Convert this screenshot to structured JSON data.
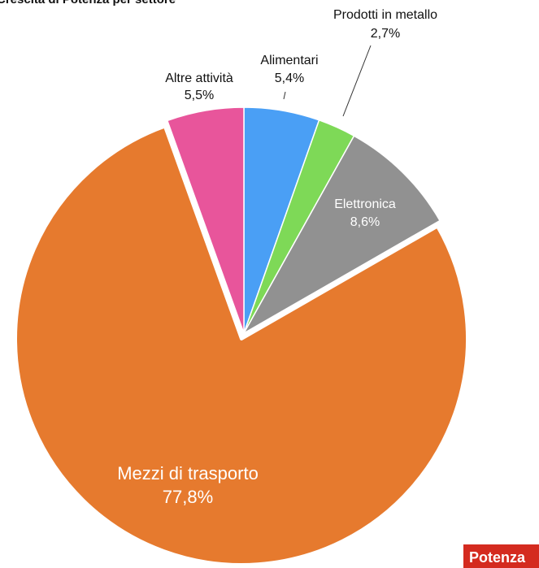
{
  "header": {
    "title": "Crescita di Potenza per settore"
  },
  "brand": {
    "label": "Potenza"
  },
  "chart_data": {
    "type": "pie",
    "title": "Crescita di Potenza per settore",
    "start_angle_deg": 0,
    "direction": "clockwise",
    "slices": [
      {
        "label": "Alimentari",
        "value": 5.4,
        "display": "5,4%",
        "color": "#4a9ff5",
        "exploded": false,
        "label_position": "outside"
      },
      {
        "label": "Prodotti in metallo",
        "value": 2.7,
        "display": "2,7%",
        "color": "#7ed957",
        "exploded": false,
        "label_position": "outside"
      },
      {
        "label": "Elettronica",
        "value": 8.6,
        "display": "8,6%",
        "color": "#919191",
        "exploded": false,
        "label_position": "inside"
      },
      {
        "label": "Mezzi di trasporto",
        "value": 77.8,
        "display": "77,8%",
        "color": "#e67a2e",
        "exploded": true,
        "label_position": "inside"
      },
      {
        "label": "Altre attività",
        "value": 5.5,
        "display": "5,5%",
        "color": "#e8559b",
        "exploded": false,
        "label_position": "outside"
      }
    ]
  }
}
